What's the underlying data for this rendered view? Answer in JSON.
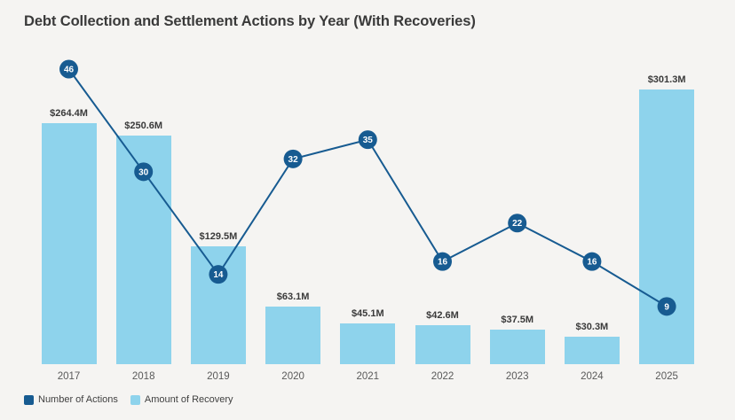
{
  "title": "Debt Collection and Settlement Actions by Year (With Recoveries)",
  "colors": {
    "background": "#f5f4f2",
    "bar": "#8ed3ec",
    "line": "#175b91",
    "marker": "#175b91",
    "marker_text": "#ffffff",
    "title_text": "#3a3a3a",
    "bar_label_text": "#3a3a3a",
    "axis_label_text": "#595959",
    "legend_text": "#404040"
  },
  "legend": {
    "items": [
      {
        "label": "Number of Actions",
        "color": "#175b91"
      },
      {
        "label": "Amount of Recovery",
        "color": "#8ed3ec"
      }
    ]
  },
  "chart_data": {
    "type": "combo",
    "title": "Debt Collection and Settlement Actions by Year (With Recoveries)",
    "categories": [
      "2017",
      "2018",
      "2019",
      "2020",
      "2021",
      "2022",
      "2023",
      "2024",
      "2025"
    ],
    "series": [
      {
        "name": "Number of Actions",
        "type": "line",
        "color": "#175b91",
        "values": [
          46,
          30,
          14,
          32,
          35,
          16,
          22,
          16,
          9
        ],
        "point_labels_shown": true
      },
      {
        "name": "Amount of Recovery",
        "type": "bar",
        "color": "#8ed3ec",
        "unit": "USD millions",
        "values": [
          264.4,
          250.6,
          129.5,
          63.1,
          45.1,
          42.6,
          37.5,
          30.3,
          301.3
        ],
        "labels": [
          "$264.4M",
          "$250.6M",
          "$129.5M",
          "$63.1M",
          "$45.1M",
          "$42.6M",
          "$37.5M",
          "$30.3M",
          "$301.3M"
        ]
      }
    ],
    "xlabel": "",
    "ylabel": "",
    "grid": false,
    "axes_shown": false,
    "legend_position": "bottom-left"
  }
}
